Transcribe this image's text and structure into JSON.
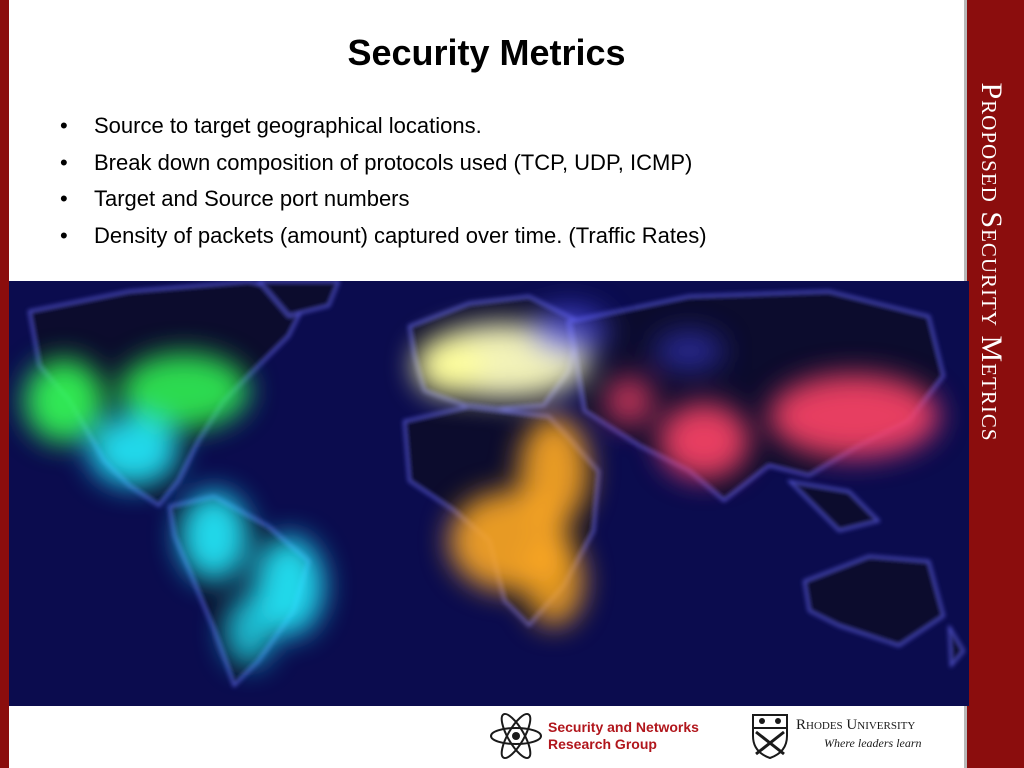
{
  "slide": {
    "title": "Security Metrics",
    "side_title": "Proposed Security Metrics",
    "bullets": [
      "Source to target geographical locations.",
      "Break down composition of protocols used (TCP, UDP, ICMP)",
      "Target and Source port numbers",
      "Density of packets (amount) captured over time. (Traffic Rates)"
    ]
  },
  "footer": {
    "group_line1": "Security and Networks",
    "group_line2": "Research Group",
    "university_name": "Rhodes University",
    "university_motto": "Where leaders learn"
  },
  "colors": {
    "border_red": "#8b0d0d",
    "map_background": "#0b0c4e",
    "north_america": "#33ff55",
    "americas_cyan": "#22eeff",
    "europe": "#ffffc0",
    "africa": "#ffaa22",
    "asia": "#ff4466",
    "group_red": "#b1161c"
  }
}
